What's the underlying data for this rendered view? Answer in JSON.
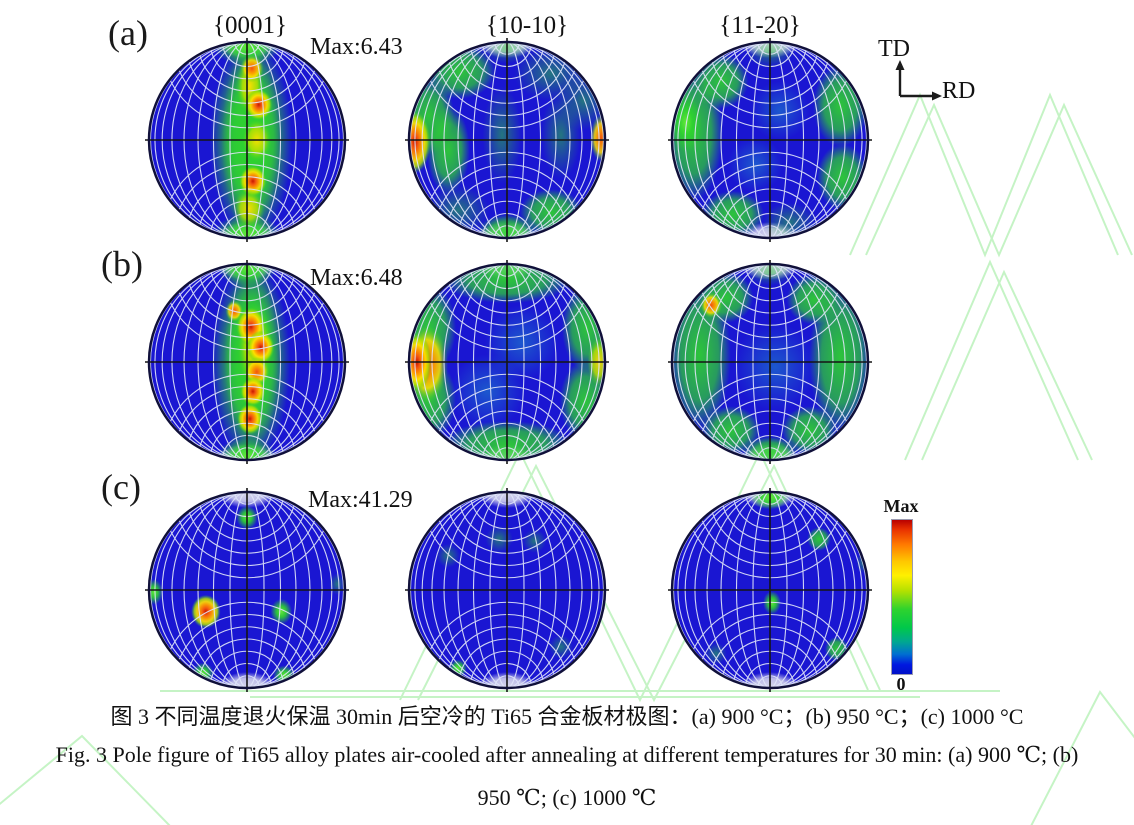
{
  "figure": {
    "rows": [
      {
        "label": "(a)",
        "max_label": "Max:6.43"
      },
      {
        "label": "(b)",
        "max_label": "Max:6.48"
      },
      {
        "label": "(c)",
        "max_label": "Max:41.29"
      }
    ],
    "column_headers": [
      "{0001}",
      "{10-10}",
      "{11-20}"
    ],
    "axes_marker": {
      "vertical": "TD",
      "horizontal": "RD"
    },
    "colorbar": {
      "top_label": "Max",
      "bottom_label": "0",
      "gradient_stops": [
        [
          0,
          "#b80000"
        ],
        [
          6,
          "#e83000"
        ],
        [
          16,
          "#ff7a00"
        ],
        [
          27,
          "#ffc800"
        ],
        [
          36,
          "#fff000"
        ],
        [
          46,
          "#b4e100"
        ],
        [
          58,
          "#2ed32e"
        ],
        [
          70,
          "#00c84a"
        ],
        [
          79,
          "#00a890"
        ],
        [
          87,
          "#0070d0"
        ],
        [
          94,
          "#0018e0"
        ],
        [
          100,
          "#0010c8"
        ]
      ]
    },
    "captions": {
      "chinese": "图 3  不同温度退火保温 30min 后空冷的 Ti65 合金板材极图：(a) 900 °C；(b) 950 °C；(c) 1000 °C",
      "english_1": "Fig. 3 Pole figure of Ti65 alloy plates air-cooled after annealing at different temperatures for 30 min: (a) 900 ℃; (b)",
      "english_2": "950 ℃; (c) 1000 ℃"
    },
    "colors": {
      "pole_base_blue": "#1a16d2",
      "ring_navy": "#10103a",
      "grid_white": "#dfe4f8",
      "green": "#2ed32e",
      "bright_green": "#62e838",
      "yellow": "#ffe000",
      "yellow_green": "#b4e100",
      "orange": "#ff9a00",
      "orange_red": "#f25410",
      "red": "#c81800",
      "teal": "#1fa8c8",
      "pole_cap": "#e6e6ee",
      "watermark_green": "#8ce98c"
    },
    "pole_figures": [
      {
        "id": "a-0001",
        "row": 0,
        "col": 0,
        "blobs": [
          [
            "band",
            0.04,
            0,
            0.42,
            1.02
          ],
          [
            "band",
            0.04,
            0,
            0.3,
            0.98
          ],
          [
            "bright",
            0,
            -0.96,
            0.34,
            0.2
          ],
          [
            "bright",
            0,
            0.96,
            0.34,
            0.2
          ],
          [
            "yellow",
            0.03,
            -0.55,
            0.14,
            0.3
          ],
          [
            "orange",
            0.05,
            -0.73,
            0.12,
            0.14
          ],
          [
            "hot",
            0.12,
            -0.36,
            0.14,
            0.16
          ],
          [
            "yellow",
            0.1,
            0.0,
            0.15,
            0.22
          ],
          [
            "hot",
            0.06,
            0.42,
            0.14,
            0.16
          ],
          [
            "yellow",
            0.02,
            0.7,
            0.16,
            0.2
          ]
        ]
      },
      {
        "id": "a-1010",
        "row": 0,
        "col": 1,
        "blobs": [
          [
            "green",
            -0.48,
            -0.7,
            0.36,
            0.28
          ],
          [
            "faint",
            0.45,
            -0.68,
            0.38,
            0.28
          ],
          [
            "green",
            -0.8,
            -0.25,
            0.26,
            0.4
          ],
          [
            "green",
            -0.6,
            0.1,
            0.22,
            0.45
          ],
          [
            "faint",
            -0.05,
            -0.05,
            0.2,
            0.5
          ],
          [
            "faint",
            0.55,
            -0.05,
            0.2,
            0.45
          ],
          [
            "faint",
            -0.5,
            0.72,
            0.32,
            0.26
          ],
          [
            "green",
            0.45,
            0.74,
            0.32,
            0.24
          ],
          [
            "green",
            0,
            0.94,
            0.3,
            0.18
          ],
          [
            "faint",
            0,
            -0.94,
            0.26,
            0.16
          ],
          [
            "faint",
            0.78,
            -0.4,
            0.26,
            0.3
          ],
          [
            "hot",
            -0.94,
            0.02,
            0.16,
            0.32
          ],
          [
            "orange",
            0.96,
            -0.02,
            0.11,
            0.24
          ]
        ]
      },
      {
        "id": "a-1120",
        "row": 0,
        "col": 2,
        "blobs": [
          [
            "green",
            -0.78,
            -0.08,
            0.3,
            0.7
          ],
          [
            "bright",
            -0.86,
            -0.18,
            0.16,
            0.3
          ],
          [
            "green",
            -0.5,
            -0.6,
            0.28,
            0.28
          ],
          [
            "green",
            0.72,
            -0.35,
            0.28,
            0.42
          ],
          [
            "green",
            0.74,
            0.38,
            0.26,
            0.34
          ],
          [
            "green",
            -0.38,
            0.76,
            0.32,
            0.24
          ],
          [
            "faint",
            0.2,
            0.84,
            0.28,
            0.2
          ],
          [
            "faint",
            0,
            -0.9,
            0.24,
            0.16
          ],
          [
            "teal",
            0.1,
            -0.3,
            0.3,
            0.3
          ],
          [
            "teal",
            -0.15,
            0.25,
            0.28,
            0.28
          ]
        ]
      },
      {
        "id": "b-0001",
        "row": 1,
        "col": 0,
        "blobs": [
          [
            "band",
            0.04,
            0,
            0.4,
            1.02
          ],
          [
            "band",
            0.05,
            -0.05,
            0.28,
            0.95
          ],
          [
            "bright",
            0,
            -0.96,
            0.3,
            0.19
          ],
          [
            "bright",
            0,
            0.96,
            0.3,
            0.19
          ],
          [
            "yellow",
            0.08,
            -0.15,
            0.18,
            0.45
          ],
          [
            "orange",
            -0.13,
            -0.52,
            0.09,
            0.11
          ],
          [
            "hot",
            0.04,
            -0.36,
            0.15,
            0.2
          ],
          [
            "hot",
            0.14,
            -0.15,
            0.14,
            0.17
          ],
          [
            "orange",
            0.1,
            0.1,
            0.13,
            0.15
          ],
          [
            "hot",
            0.06,
            0.3,
            0.13,
            0.15
          ],
          [
            "hot",
            0.03,
            0.58,
            0.13,
            0.16
          ]
        ]
      },
      {
        "id": "b-1010",
        "row": 1,
        "col": 1,
        "blobs": [
          [
            "green",
            0,
            -0.84,
            0.66,
            0.24
          ],
          [
            "green",
            0,
            0.84,
            0.66,
            0.24
          ],
          [
            "green",
            -0.8,
            -0.35,
            0.28,
            0.45
          ],
          [
            "green",
            -0.8,
            0.38,
            0.28,
            0.42
          ],
          [
            "green",
            0.82,
            -0.35,
            0.26,
            0.45
          ],
          [
            "green",
            0.8,
            0.4,
            0.26,
            0.42
          ],
          [
            "teal",
            0.15,
            -0.2,
            0.38,
            0.38
          ],
          [
            "teal",
            -0.2,
            0.3,
            0.38,
            0.38
          ],
          [
            "orange",
            -0.82,
            0.02,
            0.22,
            0.4
          ],
          [
            "hot",
            -0.92,
            0.0,
            0.15,
            0.3
          ],
          [
            "yellow",
            0.94,
            0.0,
            0.12,
            0.26
          ]
        ]
      },
      {
        "id": "b-1120",
        "row": 1,
        "col": 2,
        "blobs": [
          [
            "green",
            -0.72,
            -0.08,
            0.32,
            0.78
          ],
          [
            "green",
            0.72,
            -0.05,
            0.32,
            0.78
          ],
          [
            "green",
            -0.45,
            -0.66,
            0.28,
            0.26
          ],
          [
            "green",
            0.45,
            -0.64,
            0.28,
            0.26
          ],
          [
            "green",
            -0.4,
            0.7,
            0.3,
            0.25
          ],
          [
            "green",
            0.4,
            0.7,
            0.28,
            0.25
          ],
          [
            "orange",
            -0.6,
            -0.58,
            0.11,
            0.13
          ],
          [
            "green",
            0,
            0.92,
            0.28,
            0.16
          ],
          [
            "faint",
            0,
            -0.92,
            0.24,
            0.14
          ],
          [
            "teal",
            0.05,
            0.05,
            0.42,
            0.45
          ]
        ]
      },
      {
        "id": "c-0001",
        "row": 2,
        "col": 0,
        "blobs": [
          [
            "bright",
            0,
            -0.74,
            0.11,
            0.12
          ],
          [
            "bright",
            -0.95,
            0.02,
            0.09,
            0.13
          ],
          [
            "hot",
            -0.42,
            0.22,
            0.15,
            0.17
          ],
          [
            "bright",
            0.35,
            0.22,
            0.11,
            0.13
          ],
          [
            "faint",
            0.92,
            -0.06,
            0.08,
            0.11
          ],
          [
            "bright",
            -0.45,
            0.85,
            0.11,
            0.11
          ],
          [
            "bright",
            0.38,
            0.87,
            0.11,
            0.1
          ]
        ]
      },
      {
        "id": "c-1010",
        "row": 2,
        "col": 1,
        "blobs": [
          [
            "faint",
            -0.08,
            -0.52,
            0.14,
            0.14
          ],
          [
            "faint",
            0.28,
            -0.5,
            0.12,
            0.12
          ],
          [
            "faint",
            -0.6,
            -0.35,
            0.12,
            0.12
          ],
          [
            "bright",
            -0.5,
            0.8,
            0.09,
            0.09
          ],
          [
            "faint",
            0.55,
            0.58,
            0.12,
            0.12
          ]
        ]
      },
      {
        "id": "c-1120",
        "row": 2,
        "col": 2,
        "blobs": [
          [
            "bright",
            0,
            -0.95,
            0.2,
            0.13
          ],
          [
            "green",
            0.5,
            -0.52,
            0.12,
            0.12
          ],
          [
            "bright",
            0.02,
            0.13,
            0.09,
            0.12
          ],
          [
            "green",
            0.68,
            0.6,
            0.12,
            0.12
          ],
          [
            "faint",
            -0.55,
            0.65,
            0.11,
            0.11
          ],
          [
            "faint",
            0.95,
            -0.28,
            0.07,
            0.11
          ]
        ]
      }
    ]
  }
}
